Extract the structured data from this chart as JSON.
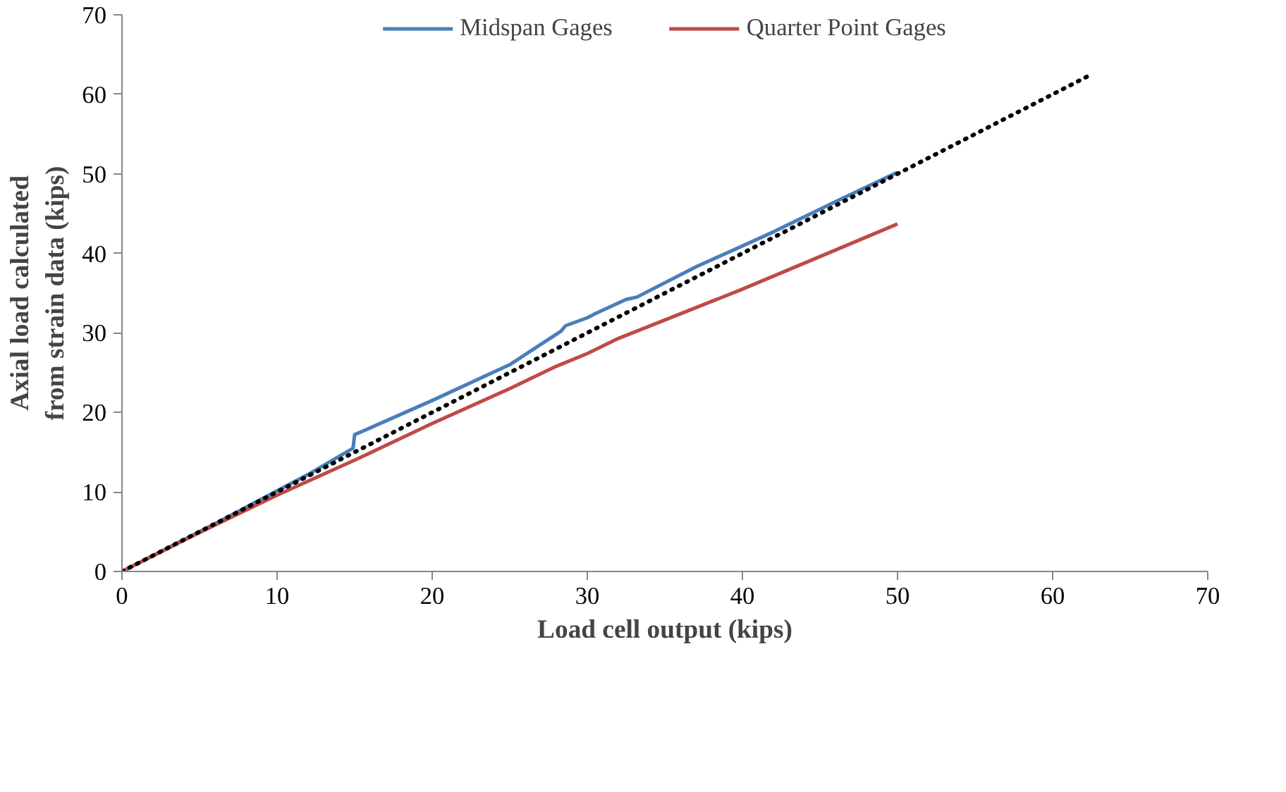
{
  "chart_data": {
    "type": "line",
    "xlabel": "Load cell output (kips)",
    "ylabel": "Axial load calculated\nfrom strain data (kips)",
    "xlim": [
      0,
      70
    ],
    "ylim": [
      0,
      70
    ],
    "xticks": [
      0,
      10,
      20,
      30,
      40,
      50,
      60,
      70
    ],
    "yticks": [
      0,
      10,
      20,
      30,
      40,
      50,
      60,
      70
    ],
    "grid": false,
    "legend": "top",
    "marker": "none",
    "series": [
      {
        "name": "Midspan Gages",
        "color": "#4a7ebb",
        "line_style": "solid",
        "x": [
          0,
          6,
          12,
          14.9,
          15,
          20,
          25,
          28.3,
          28.6,
          30,
          30.5,
          32.5,
          33.2,
          37,
          42,
          46,
          50
        ],
        "values": [
          0,
          6,
          12.2,
          15.5,
          17.2,
          21.5,
          26,
          30.2,
          30.9,
          31.9,
          32.4,
          34.2,
          34.5,
          38.3,
          42.7,
          46.5,
          50.2
        ]
      },
      {
        "name": "Quarter Point Gages",
        "color": "#be4b48",
        "line_style": "solid",
        "x": [
          0,
          5,
          10,
          15,
          20,
          25,
          28,
          30,
          32,
          36,
          40,
          45,
          50
        ],
        "values": [
          0,
          4.9,
          9.6,
          14,
          18.6,
          23,
          25.8,
          27.4,
          29.3,
          32.4,
          35.5,
          39.6,
          43.7
        ]
      },
      {
        "color": "#000000",
        "line_style": "dotted",
        "x": [
          0,
          62.3
        ],
        "values": [
          0,
          62.3
        ]
      }
    ]
  }
}
